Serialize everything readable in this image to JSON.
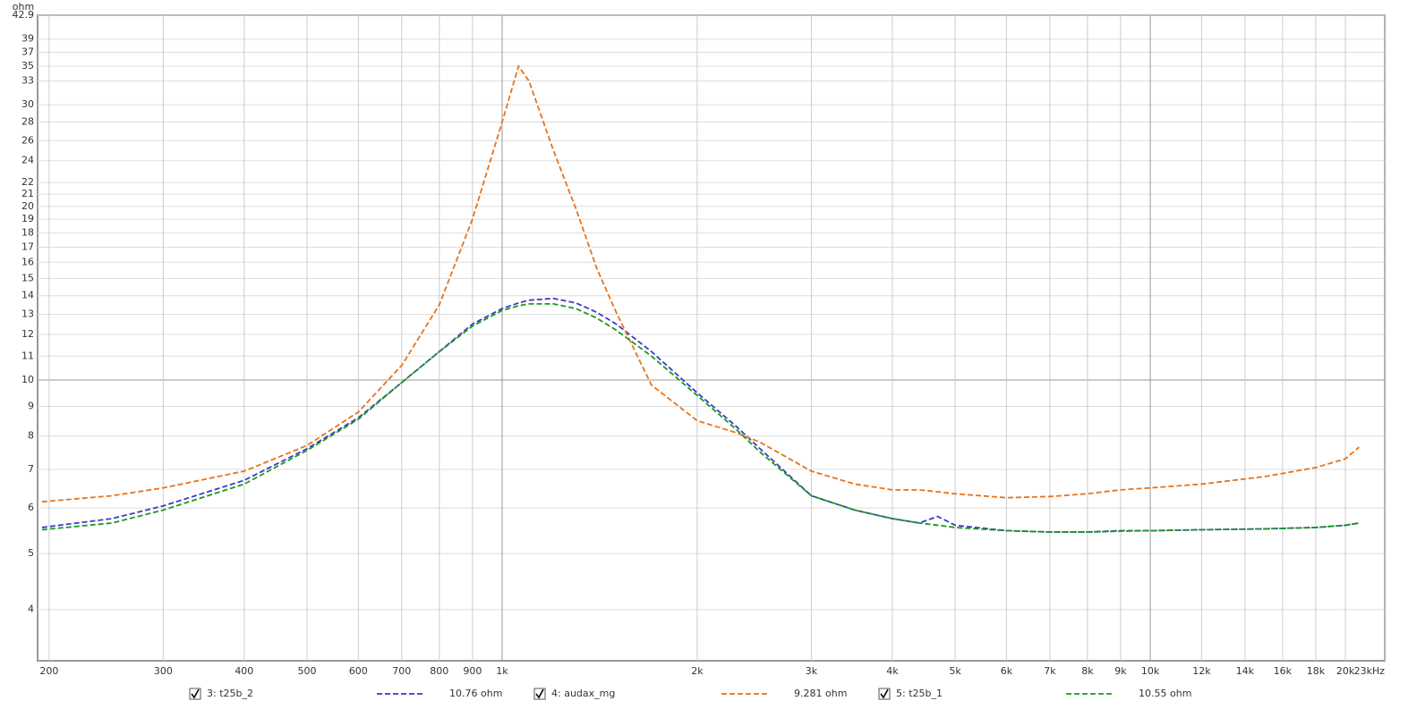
{
  "chart_data": {
    "type": "line",
    "y_unit": "ohm",
    "log_x": true,
    "log_y": true,
    "grid": true,
    "legend_position": "bottom",
    "xlim": [
      192,
      23000
    ],
    "ylim": [
      3.26,
      42.9
    ],
    "xticks": [
      200,
      300,
      400,
      500,
      600,
      700,
      800,
      900,
      {
        "value": 1000,
        "label": "1k"
      },
      {
        "value": 2000,
        "label": "2k"
      },
      {
        "value": 3000,
        "label": "3k"
      },
      {
        "value": 4000,
        "label": "4k"
      },
      {
        "value": 5000,
        "label": "5k"
      },
      {
        "value": 6000,
        "label": "6k"
      },
      {
        "value": 7000,
        "label": "7k"
      },
      {
        "value": 8000,
        "label": "8k"
      },
      {
        "value": 9000,
        "label": "9k"
      },
      {
        "value": 10000,
        "label": "10k"
      },
      {
        "value": 12000,
        "label": "12k"
      },
      {
        "value": 14000,
        "label": "14k"
      },
      {
        "value": 16000,
        "label": "16k"
      },
      {
        "value": 18000,
        "label": "18k"
      },
      {
        "value": 20000,
        "label": "20k"
      },
      {
        "value": 23000,
        "label": "23kHz"
      }
    ],
    "yticks": [
      4,
      5,
      6,
      7,
      8,
      9,
      10,
      11,
      12,
      13,
      14,
      15,
      16,
      17,
      18,
      19,
      20,
      21,
      22,
      24,
      26,
      28,
      30,
      33,
      35,
      37,
      39,
      42.9
    ],
    "x": [
      195,
      250,
      300,
      400,
      500,
      600,
      700,
      800,
      900,
      1000,
      1060,
      1100,
      1200,
      1300,
      1400,
      1500,
      1700,
      2000,
      2300,
      2500,
      3000,
      3500,
      4000,
      4400,
      4700,
      5000,
      6000,
      7000,
      8000,
      9000,
      10000,
      12000,
      15000,
      18000,
      20000,
      21000
    ],
    "series": [
      {
        "name": "3: t25b_2",
        "legend_value": "10.76 ohm",
        "color": "#3a3acc",
        "values": [
          5.55,
          5.75,
          6.05,
          6.7,
          7.6,
          8.6,
          9.9,
          11.2,
          12.5,
          13.3,
          13.6,
          13.75,
          13.85,
          13.6,
          13.1,
          12.5,
          11.2,
          9.5,
          8.3,
          7.6,
          6.3,
          5.95,
          5.75,
          5.65,
          5.8,
          5.6,
          5.48,
          5.45,
          5.45,
          5.48,
          5.48,
          5.5,
          5.52,
          5.55,
          5.6,
          5.65
        ]
      },
      {
        "name": "4: audax_mg",
        "legend_value": "9.281 ohm",
        "color": "#e8731a",
        "values": [
          6.15,
          6.3,
          6.5,
          6.95,
          7.7,
          8.8,
          10.6,
          13.5,
          19,
          28,
          35,
          33,
          25,
          19.8,
          15.6,
          13.1,
          9.8,
          8.5,
          8.1,
          7.8,
          6.95,
          6.6,
          6.45,
          6.45,
          6.4,
          6.35,
          6.25,
          6.28,
          6.35,
          6.45,
          6.5,
          6.6,
          6.8,
          7.05,
          7.3,
          7.65
        ]
      },
      {
        "name": "5: t25b_1",
        "legend_value": "10.55 ohm",
        "color": "#1a9a1a",
        "values": [
          5.5,
          5.65,
          5.95,
          6.6,
          7.55,
          8.55,
          9.9,
          11.2,
          12.4,
          13.2,
          13.45,
          13.55,
          13.55,
          13.3,
          12.8,
          12.2,
          11,
          9.4,
          8.2,
          7.5,
          6.3,
          5.95,
          5.75,
          5.65,
          5.6,
          5.55,
          5.48,
          5.45,
          5.45,
          5.47,
          5.48,
          5.5,
          5.52,
          5.55,
          5.6,
          5.65
        ]
      }
    ]
  }
}
